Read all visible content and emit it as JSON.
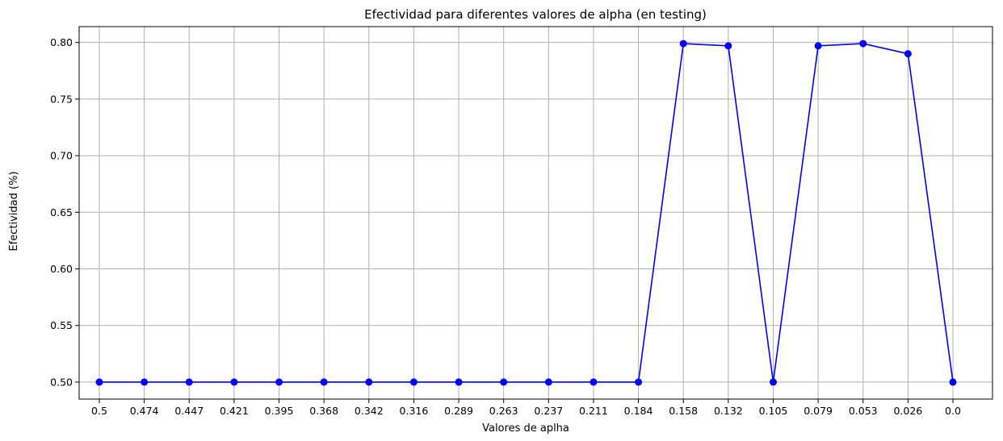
{
  "chart_data": {
    "type": "line",
    "title": "Efectividad para diferentes valores de alpha (en testing)",
    "xlabel": "Valores de aplha",
    "ylabel": "Efectividad (%)",
    "categories": [
      "0.5",
      "0.474",
      "0.447",
      "0.421",
      "0.395",
      "0.368",
      "0.342",
      "0.316",
      "0.289",
      "0.263",
      "0.237",
      "0.211",
      "0.184",
      "0.158",
      "0.132",
      "0.105",
      "0.079",
      "0.053",
      "0.026",
      "0.0"
    ],
    "values": [
      0.5,
      0.5,
      0.5,
      0.5,
      0.5,
      0.5,
      0.5,
      0.5,
      0.5,
      0.5,
      0.5,
      0.5,
      0.5,
      0.799,
      0.797,
      0.5,
      0.797,
      0.799,
      0.79,
      0.5
    ],
    "yticks": [
      "0.50",
      "0.55",
      "0.60",
      "0.65",
      "0.70",
      "0.75",
      "0.80"
    ],
    "ytick_values": [
      0.5,
      0.55,
      0.6,
      0.65,
      0.7,
      0.75,
      0.8
    ],
    "ylim": [
      0.485,
      0.814
    ],
    "grid": true,
    "line_color": "#0000ff",
    "marker": "circle"
  }
}
